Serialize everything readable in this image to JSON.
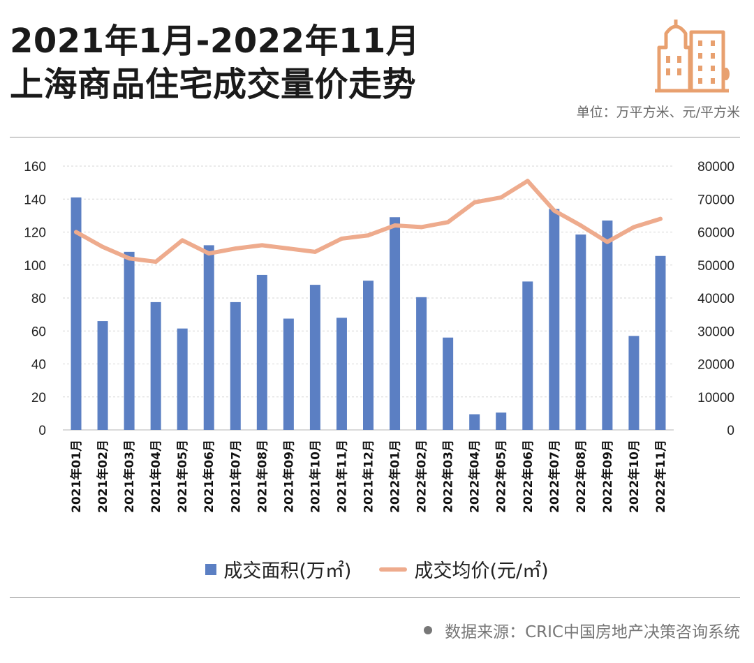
{
  "header": {
    "title_line1": "2021年1月-2022年11月",
    "title_line2": "上海商品住宅成交量价走势",
    "unit_note": "单位：万平方米、元/平方米",
    "logo_icon": "city-buildings-icon"
  },
  "footer": {
    "source": "数据来源：CRIC中国房地产决策咨询系统"
  },
  "colors": {
    "bar": "#5b7fc3",
    "line": "#eeab8d",
    "logo": "#e8a06f",
    "grid": "#d6d6d6"
  },
  "chart_data": {
    "type": "bar",
    "categories": [
      "2021年01月",
      "2021年02月",
      "2021年03月",
      "2021年04月",
      "2021年05月",
      "2021年06月",
      "2021年07月",
      "2021年08月",
      "2021年09月",
      "2021年10月",
      "2021年11月",
      "2021年12月",
      "2022年01月",
      "2022年02月",
      "2022年03月",
      "2022年04月",
      "2022年05月",
      "2022年06月",
      "2022年07月",
      "2022年08月",
      "2022年09月",
      "2022年10月",
      "2022年11月"
    ],
    "series": [
      {
        "name": "成交面积(万㎡)",
        "type": "bar",
        "axis": "left",
        "values": [
          141,
          66,
          108,
          77.5,
          61.5,
          112,
          77.5,
          94,
          67.5,
          88,
          68,
          90.5,
          129,
          80.5,
          56,
          9.5,
          10.5,
          90,
          134,
          118.5,
          127,
          57,
          105.5
        ]
      },
      {
        "name": "成交均价(元/㎡)",
        "type": "line",
        "axis": "right",
        "values": [
          60000,
          55500,
          52000,
          51000,
          57500,
          53500,
          55000,
          56000,
          55000,
          54000,
          58000,
          59000,
          62000,
          61500,
          63000,
          69000,
          70500,
          75500,
          66500,
          62000,
          57000,
          61500,
          64000
        ]
      }
    ],
    "y_left": {
      "ylim": [
        0,
        160
      ],
      "ticks": [
        0,
        20,
        40,
        60,
        80,
        100,
        120,
        140,
        160
      ]
    },
    "y_right": {
      "ylim": [
        0,
        80000
      ],
      "ticks": [
        0,
        10000,
        20000,
        30000,
        40000,
        50000,
        60000,
        70000,
        80000
      ]
    },
    "grid": true,
    "legend_position": "bottom"
  }
}
